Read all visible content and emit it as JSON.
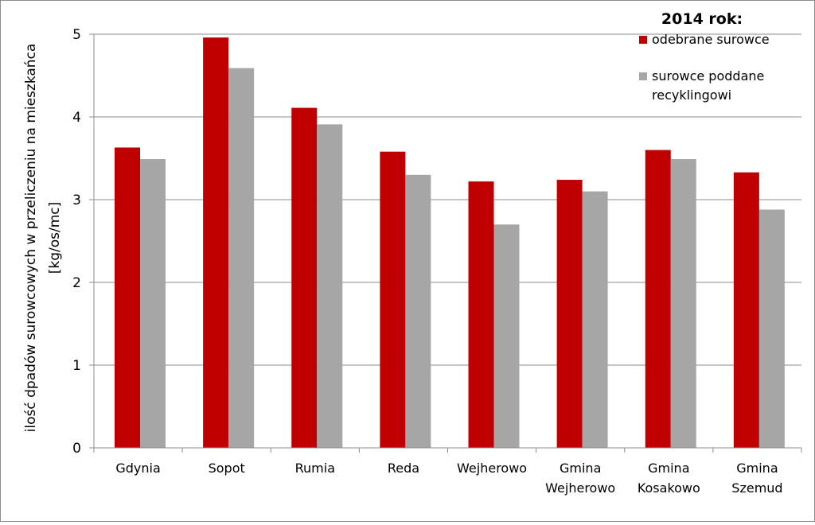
{
  "chart_data": {
    "type": "bar",
    "title": "",
    "xlabel": "",
    "ylabel_lines": [
      "ilość dpadów  surowcowych  w przeliczeniu na mieszkańca",
      "[kg/os/mc]"
    ],
    "ylim": [
      0,
      5
    ],
    "yticks": [
      "0",
      "1",
      "2",
      "3",
      "4",
      "5"
    ],
    "grid": true,
    "legend_position": "top-right",
    "legend_title": "2014 rok:",
    "categories": [
      [
        "Gdynia"
      ],
      [
        "Sopot"
      ],
      [
        "Rumia"
      ],
      [
        "Reda"
      ],
      [
        "Wejherowo"
      ],
      [
        "Gmina",
        "Wejherowo"
      ],
      [
        "Gmina",
        "Kosakowo"
      ],
      [
        "Gmina",
        "Szemud"
      ]
    ],
    "series": [
      {
        "name_lines": [
          "odebrane surowce"
        ],
        "color": "#c00000",
        "values": [
          3.63,
          4.96,
          4.11,
          3.58,
          3.22,
          3.24,
          3.6,
          3.33
        ]
      },
      {
        "name_lines": [
          "surowce poddane",
          "recyklingowi"
        ],
        "color": "#a6a6a6",
        "values": [
          3.49,
          4.59,
          3.91,
          3.3,
          2.7,
          3.1,
          3.49,
          2.88
        ]
      }
    ]
  }
}
